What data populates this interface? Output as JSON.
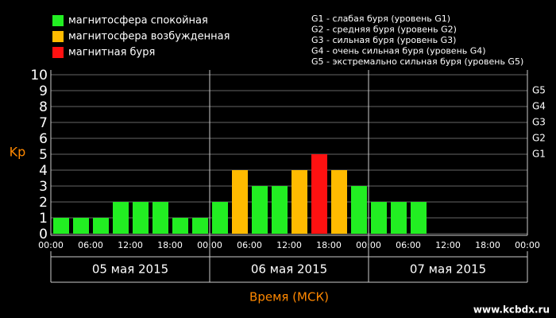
{
  "chart_data": {
    "type": "bar",
    "y_label": "Kp",
    "x_label": "Время (МСК)",
    "watermark": "www.kcbdx.ru",
    "legend": [
      {
        "name": "магнитосфера спокойная",
        "color": "#22ee22"
      },
      {
        "name": "магнитосфера возбужденная",
        "color": "#ffbb00"
      },
      {
        "name": "магнитная буря",
        "color": "#ff1111"
      }
    ],
    "storm_levels": [
      "G1 - слабая буря (уровень G1)",
      "G2 - средняя буря (уровень G2)",
      "G3 - сильная буря (уровень G3)",
      "G4 - очень сильная буря (уровень G4)",
      "G5 - экстремально сильная буря (уровень G5)"
    ],
    "days": [
      "05 мая 2015",
      "06 мая 2015",
      "07 мая 2015"
    ],
    "x": [
      0,
      3,
      6,
      9,
      12,
      15,
      18,
      21,
      24,
      27,
      30,
      33,
      36,
      39,
      42,
      45,
      48,
      51,
      54,
      57,
      60,
      63,
      66,
      69
    ],
    "series": [
      {
        "values": [
          1,
          1,
          1,
          2,
          2,
          2,
          1,
          1,
          2,
          4,
          3,
          3,
          4,
          5,
          4,
          3,
          2,
          2,
          2,
          null,
          null,
          null,
          null,
          null
        ],
        "colors": [
          "#22ee22",
          "#22ee22",
          "#22ee22",
          "#22ee22",
          "#22ee22",
          "#22ee22",
          "#22ee22",
          "#22ee22",
          "#22ee22",
          "#ffbb00",
          "#22ee22",
          "#22ee22",
          "#ffbb00",
          "#ff1111",
          "#ffbb00",
          "#22ee22",
          "#22ee22",
          "#22ee22",
          "#22ee22",
          null,
          null,
          null,
          null,
          null
        ]
      }
    ],
    "xlim": [
      0,
      72
    ],
    "xticks": [
      {
        "value": 0,
        "label": "00:00"
      },
      {
        "value": 6,
        "label": "06:00"
      },
      {
        "value": 12,
        "label": "12:00"
      },
      {
        "value": 18,
        "label": "18:00"
      },
      {
        "value": 24,
        "label": "00:00"
      },
      {
        "value": 30,
        "label": "06:00"
      },
      {
        "value": 36,
        "label": "12:00"
      },
      {
        "value": 42,
        "label": "18:00"
      },
      {
        "value": 48,
        "label": "00:00"
      },
      {
        "value": 54,
        "label": "06:00"
      },
      {
        "value": 60,
        "label": "12:00"
      },
      {
        "value": 66,
        "label": "18:00"
      },
      {
        "value": 72,
        "label": "00:00"
      }
    ],
    "ylim": [
      0,
      10
    ],
    "yticks": [
      0,
      1,
      2,
      3,
      4,
      5,
      6,
      7,
      8,
      9,
      10
    ],
    "y2lim": [
      0,
      10
    ],
    "y2ticks": [
      {
        "value": 5,
        "label": "G1"
      },
      {
        "value": 6,
        "label": "G2"
      },
      {
        "value": 7,
        "label": "G3"
      },
      {
        "value": 8,
        "label": "G4"
      },
      {
        "value": 9,
        "label": "G5"
      }
    ],
    "grid": true
  }
}
